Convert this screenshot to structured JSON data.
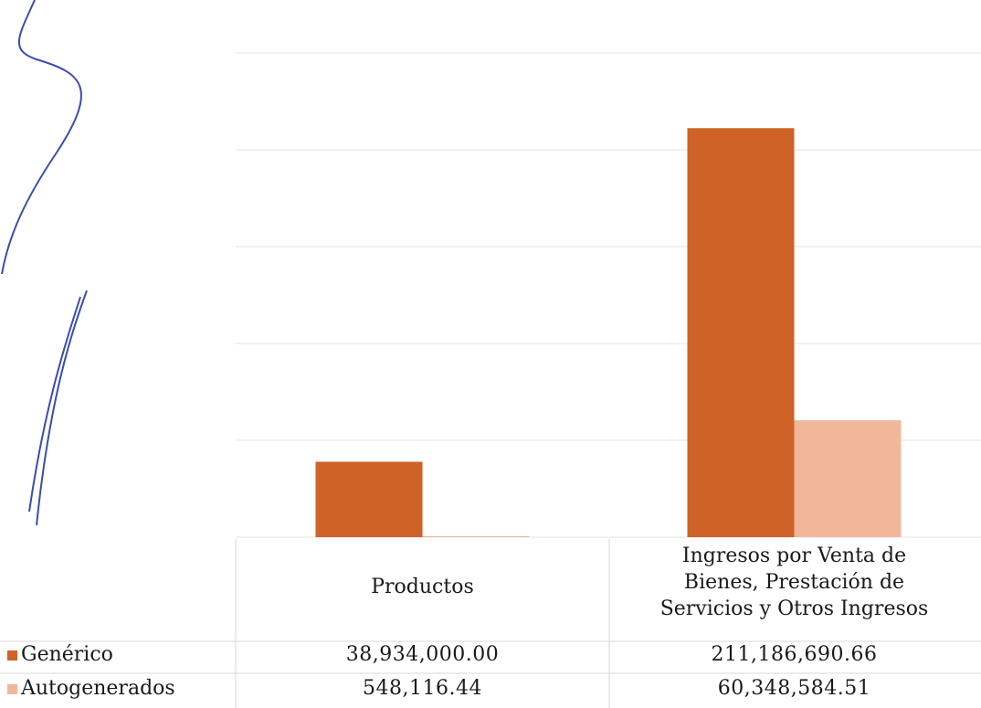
{
  "chart_data": {
    "type": "bar",
    "categories": [
      "Productos",
      "Ingresos por Venta de Bienes, Prestación de Servicios y Otros Ingresos"
    ],
    "category_lines": [
      [
        "Productos"
      ],
      [
        "Ingresos por Venta de",
        "Bienes, Prestación de",
        "Servicios y Otros Ingresos"
      ]
    ],
    "series": [
      {
        "name": "Genérico",
        "values": [
          38934000.0,
          211186690.66
        ],
        "labels": [
          "38,934,000.00",
          "211,186,690.66"
        ],
        "color": "#cf6227"
      },
      {
        "name": "Autogenerados",
        "values": [
          548116.44,
          60348584.51
        ],
        "labels": [
          "548,116.44",
          "60,348,584.51"
        ],
        "color": "#f0b79a"
      }
    ],
    "ylim": [
      0,
      250000000
    ],
    "grid": true,
    "legend": "data-table-left",
    "title": "",
    "xlabel": "",
    "ylabel": ""
  }
}
